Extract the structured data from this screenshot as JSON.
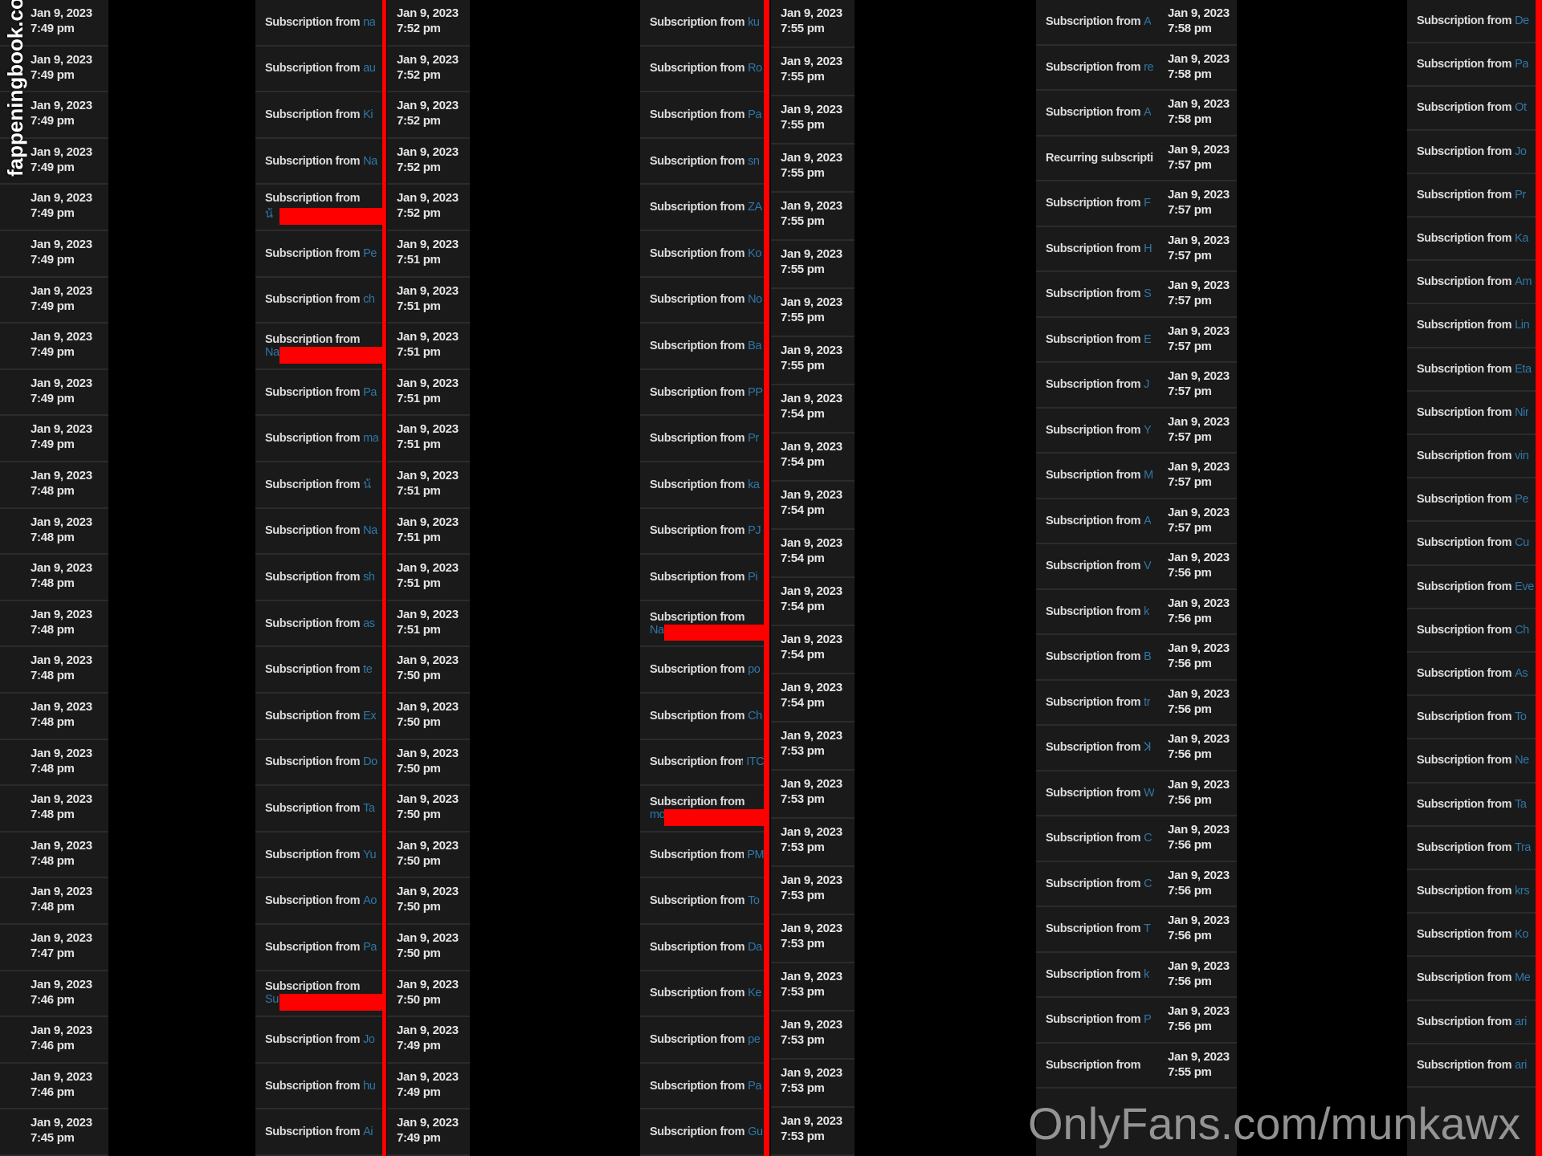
{
  "colors": {
    "background": "#000000",
    "panel": "#1a1a1a",
    "text": "#e6e6e6",
    "username": "#2f77a8",
    "redaction": "#ff0000"
  },
  "date_label": "Jan 9, 2023",
  "sub_label": "Subscription from",
  "column_a": {
    "times": [
      "7:49 pm",
      "7:49 pm",
      "7:49 pm",
      "7:49 pm",
      "7:49 pm",
      "7:49 pm",
      "7:49 pm",
      "7:49 pm",
      "7:49 pm",
      "7:49 pm",
      "7:48 pm",
      "7:48 pm",
      "7:48 pm",
      "7:48 pm",
      "7:48 pm",
      "7:48 pm",
      "7:48 pm",
      "7:48 pm",
      "7:48 pm",
      "7:48 pm",
      "7:47 pm",
      "7:46 pm",
      "7:46 pm",
      "7:46 pm",
      "7:45 pm"
    ]
  },
  "column_b": {
    "subs": [
      {
        "name": "na"
      },
      {
        "name": "au"
      },
      {
        "name": "Ki"
      },
      {
        "name": "Na"
      },
      {
        "name": "น้",
        "redacted": true
      },
      {
        "name": "Pe"
      },
      {
        "name": "ch"
      },
      {
        "name": "Na",
        "redacted": true
      },
      {
        "name": "Pa"
      },
      {
        "name": "ma"
      },
      {
        "name": "น้"
      },
      {
        "name": "Na"
      },
      {
        "name": "sh"
      },
      {
        "name": "as"
      },
      {
        "name": "te"
      },
      {
        "name": "Ex"
      },
      {
        "name": "Do"
      },
      {
        "name": "Ta"
      },
      {
        "name": "Yu"
      },
      {
        "name": "Ao"
      },
      {
        "name": "Pa"
      },
      {
        "name": "Su",
        "redacted": true
      },
      {
        "name": "Jo"
      },
      {
        "name": "hu"
      },
      {
        "name": "Ai"
      }
    ],
    "times": [
      "7:52 pm",
      "7:52 pm",
      "7:52 pm",
      "7:52 pm",
      "7:52 pm",
      "7:51 pm",
      "7:51 pm",
      "7:51 pm",
      "7:51 pm",
      "7:51 pm",
      "7:51 pm",
      "7:51 pm",
      "7:51 pm",
      "7:51 pm",
      "7:50 pm",
      "7:50 pm",
      "7:50 pm",
      "7:50 pm",
      "7:50 pm",
      "7:50 pm",
      "7:50 pm",
      "7:50 pm",
      "7:49 pm",
      "7:49 pm",
      "7:49 pm"
    ]
  },
  "column_c": {
    "subs": [
      {
        "name": "ku"
      },
      {
        "name": "Ro"
      },
      {
        "name": "Pa"
      },
      {
        "name": "sn"
      },
      {
        "name": "ZA"
      },
      {
        "name": "Ko"
      },
      {
        "name": "No"
      },
      {
        "name": "Ba"
      },
      {
        "name": "PP"
      },
      {
        "name": "Pr"
      },
      {
        "name": "ka"
      },
      {
        "name": "PJ"
      },
      {
        "name": "Pi"
      },
      {
        "name": "Na",
        "redacted": true
      },
      {
        "name": "po"
      },
      {
        "name": "Ch"
      },
      {
        "name": "ITC"
      },
      {
        "name": "mo",
        "redacted": true
      },
      {
        "name": "PM"
      },
      {
        "name": "To"
      },
      {
        "name": "Da"
      },
      {
        "name": "Ke"
      },
      {
        "name": "pe"
      },
      {
        "name": "Pa"
      },
      {
        "name": "Gu"
      }
    ],
    "times": [
      "7:55 pm",
      "7:55 pm",
      "7:55 pm",
      "7:55 pm",
      "7:55 pm",
      "7:55 pm",
      "7:55 pm",
      "7:55 pm",
      "7:54 pm",
      "7:54 pm",
      "7:54 pm",
      "7:54 pm",
      "7:54 pm",
      "7:54 pm",
      "7:54 pm",
      "7:53 pm",
      "7:53 pm",
      "7:53 pm",
      "7:53 pm",
      "7:53 pm",
      "7:53 pm",
      "7:53 pm",
      "7:53 pm",
      "7:53 pm"
    ]
  },
  "column_d": {
    "subs": [
      {
        "name": "A"
      },
      {
        "name": "re"
      },
      {
        "name": "A"
      },
      {
        "label": "Recurring subscripti",
        "name": ""
      },
      {
        "name": "F"
      },
      {
        "name": "H"
      },
      {
        "name": "S"
      },
      {
        "name": "E"
      },
      {
        "name": "J"
      },
      {
        "name": "Y"
      },
      {
        "name": "M"
      },
      {
        "name": "A"
      },
      {
        "name": "V"
      },
      {
        "name": "k"
      },
      {
        "name": "B"
      },
      {
        "name": "tr"
      },
      {
        "name": "ꓘ"
      },
      {
        "name": "W"
      },
      {
        "name": "C"
      },
      {
        "name": "C"
      },
      {
        "name": "T"
      },
      {
        "name": "k"
      },
      {
        "name": "P"
      },
      {
        "name": ""
      }
    ],
    "times": [
      "7:58 pm",
      "7:58 pm",
      "7:58 pm",
      "7:57 pm",
      "7:57 pm",
      "7:57 pm",
      "7:57 pm",
      "7:57 pm",
      "7:57 pm",
      "7:57 pm",
      "7:57 pm",
      "7:57 pm",
      "7:56 pm",
      "7:56 pm",
      "7:56 pm",
      "7:56 pm",
      "7:56 pm",
      "7:56 pm",
      "7:56 pm",
      "7:56 pm",
      "7:56 pm",
      "7:56 pm",
      "7:56 pm",
      "7:55 pm"
    ]
  },
  "column_e": {
    "subs": [
      {
        "name": "De"
      },
      {
        "name": "Pa"
      },
      {
        "name": "Ot"
      },
      {
        "name": "Jo"
      },
      {
        "name": "Pr"
      },
      {
        "name": "Ka"
      },
      {
        "name": "Am"
      },
      {
        "name": "Lin"
      },
      {
        "name": "Eta"
      },
      {
        "name": "Nir"
      },
      {
        "name": "vin"
      },
      {
        "name": "Pe"
      },
      {
        "name": "Cu"
      },
      {
        "name": "Eve"
      },
      {
        "name": "Ch"
      },
      {
        "name": "As"
      },
      {
        "name": "To"
      },
      {
        "name": "Ne"
      },
      {
        "name": "Ta"
      },
      {
        "name": "Tra"
      },
      {
        "name": "krs"
      },
      {
        "name": "Ko"
      },
      {
        "name": "Me"
      },
      {
        "name": "ari"
      },
      {
        "name": "ari"
      }
    ]
  },
  "watermarks": {
    "left": "fappeningbook.com",
    "bottom_right": "OnlyFans.com/munkawx"
  }
}
